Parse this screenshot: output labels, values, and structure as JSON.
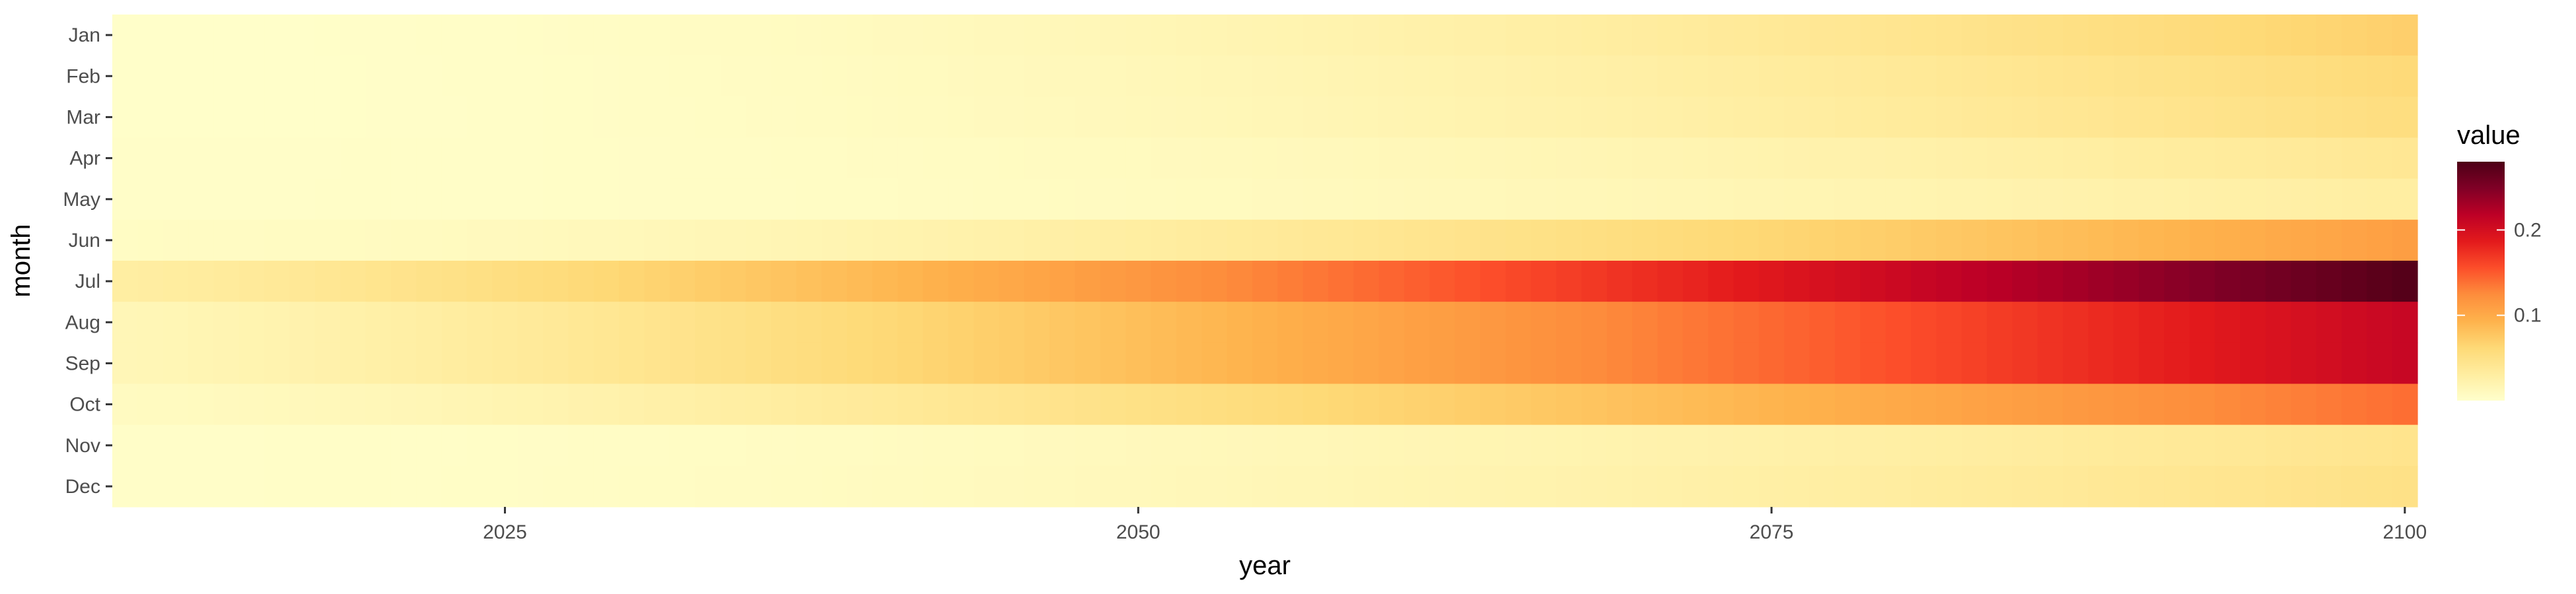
{
  "chart_data": {
    "type": "heatmap",
    "title": "",
    "xlabel": "year",
    "ylabel": "month",
    "x_range": [
      2010,
      2100
    ],
    "x_ticks": [
      2025,
      2050,
      2075,
      2100
    ],
    "months": [
      "Jan",
      "Feb",
      "Mar",
      "Apr",
      "May",
      "Jun",
      "Jul",
      "Aug",
      "Sep",
      "Oct",
      "Nov",
      "Dec"
    ],
    "value_model": "value(month, year) = base + (end - base) * ((year - 2010) / 90) ^ power, values read approximately from the colour scale",
    "month_series": [
      {
        "month": "Jan",
        "base": 0.002,
        "end": 0.07,
        "power": 2.0
      },
      {
        "month": "Feb",
        "base": 0.002,
        "end": 0.06,
        "power": 2.0
      },
      {
        "month": "Mar",
        "base": 0.002,
        "end": 0.055,
        "power": 2.0
      },
      {
        "month": "Apr",
        "base": 0.003,
        "end": 0.04,
        "power": 2.2
      },
      {
        "month": "May",
        "base": 0.003,
        "end": 0.03,
        "power": 2.0
      },
      {
        "month": "Jun",
        "base": 0.006,
        "end": 0.11,
        "power": 1.8
      },
      {
        "month": "Jul",
        "base": 0.03,
        "end": 0.275,
        "power": 1.3
      },
      {
        "month": "Aug",
        "base": 0.015,
        "end": 0.21,
        "power": 1.3
      },
      {
        "month": "Sep",
        "base": 0.015,
        "end": 0.21,
        "power": 1.3
      },
      {
        "month": "Oct",
        "base": 0.008,
        "end": 0.14,
        "power": 1.4
      },
      {
        "month": "Nov",
        "base": 0.003,
        "end": 0.045,
        "power": 2.0
      },
      {
        "month": "Dec",
        "base": 0.003,
        "end": 0.05,
        "power": 2.0
      }
    ],
    "legend": {
      "title": "value",
      "placement": "right",
      "ticks": [
        0.1,
        0.2
      ],
      "tick_labels": [
        "0.1",
        "0.2"
      ],
      "range": [
        0.0,
        0.28
      ],
      "palette": "YlOrRd",
      "colors": [
        "#FFFFCC",
        "#FFEDA0",
        "#FED976",
        "#FEB24C",
        "#FD8D3C",
        "#FC4E2A",
        "#E31A1C",
        "#BD0026",
        "#800026",
        "#4D0016"
      ]
    },
    "grid": false
  }
}
